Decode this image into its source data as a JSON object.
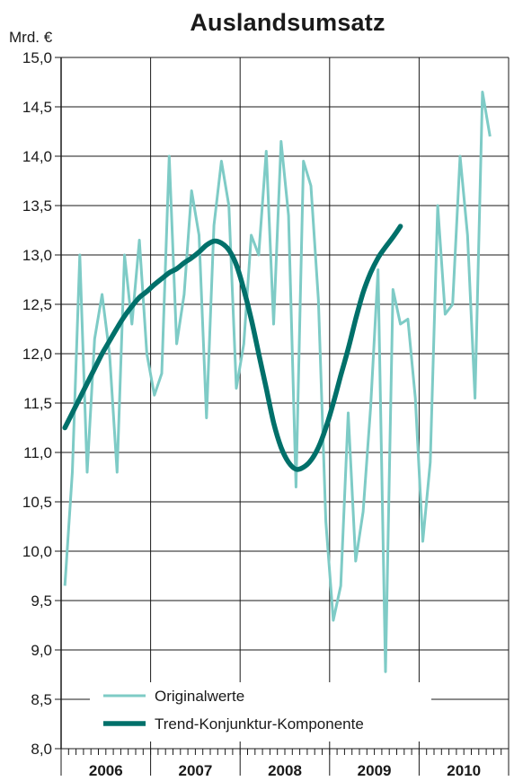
{
  "chart_data": {
    "type": "line",
    "title": "Auslandsumsatz",
    "ylabel": "Mrd. €",
    "ylim": [
      8.0,
      15.0
    ],
    "yticks": [
      "15,0",
      "14,5",
      "14,0",
      "13,5",
      "13,0",
      "12,5",
      "12,0",
      "11,5",
      "11,0",
      "10,5",
      "10,0",
      "9,5",
      "9,0",
      "8,5",
      "8,0"
    ],
    "years": [
      "2006",
      "2007",
      "2008",
      "2009",
      "2010"
    ],
    "legend_position": "bottom",
    "grid": true,
    "colors": {
      "original": "#7ecbc6",
      "trend": "#00706a"
    },
    "series": [
      {
        "name": "Originalwerte",
        "values": [
          9.65,
          10.8,
          13.0,
          10.8,
          12.15,
          12.6,
          12.0,
          10.8,
          13.0,
          12.3,
          13.15,
          12.0,
          11.58,
          11.8,
          14.0,
          12.1,
          12.6,
          13.65,
          13.2,
          11.35,
          13.3,
          13.95,
          13.5,
          11.65,
          12.1,
          13.2,
          13.0,
          14.05,
          12.3,
          14.15,
          13.4,
          10.65,
          13.95,
          13.7,
          12.55,
          10.3,
          9.3,
          9.65,
          11.4,
          9.9,
          10.4,
          11.45,
          12.85,
          8.78,
          12.65,
          12.3,
          12.35,
          11.55,
          10.1,
          10.9,
          13.5,
          12.4,
          12.5,
          14.0,
          13.2,
          11.55,
          14.65,
          14.2
        ]
      },
      {
        "name": "Trend-Konjunktur-Komponente",
        "values": [
          11.25,
          11.4,
          11.55,
          11.7,
          11.85,
          12.0,
          12.13,
          12.26,
          12.38,
          12.48,
          12.57,
          12.63,
          12.7,
          12.76,
          12.82,
          12.86,
          12.92,
          12.97,
          13.03,
          13.1,
          13.14,
          13.12,
          13.05,
          12.9,
          12.65,
          12.35,
          12.0,
          11.65,
          11.3,
          11.05,
          10.9,
          10.83,
          10.85,
          10.92,
          11.05,
          11.25,
          11.5,
          11.78,
          12.05,
          12.35,
          12.62,
          12.82,
          12.97,
          13.08,
          13.18,
          13.29
        ]
      }
    ]
  }
}
